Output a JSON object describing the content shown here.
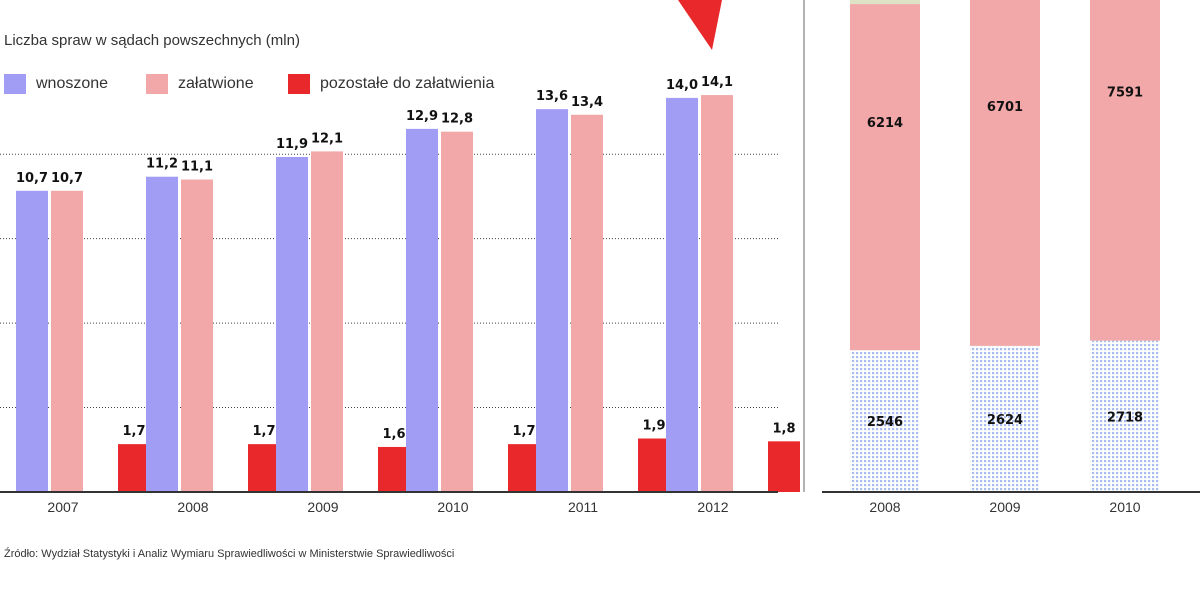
{
  "left_chart": {
    "title": "Liczba spraw w sądach powszechnych (mln)",
    "legend": [
      {
        "label": "wnoszone",
        "color": "#a19cf4"
      },
      {
        "label": "załatwione",
        "color": "#f2a8a8"
      },
      {
        "label": "pozostałe do załatwienia",
        "color": "#e8282a"
      }
    ]
  },
  "source": "Źródło: Wydział Statystyki i Analiz Wymiaru Sprawiedliwości w Ministerstwie Sprawiedliwości",
  "chart_data": [
    {
      "type": "bar",
      "title": "Liczba spraw w sądach powszechnych (mln)",
      "categories": [
        "2007",
        "2008",
        "2009",
        "2010",
        "2011",
        "2012"
      ],
      "ylim": [
        0,
        17.5
      ],
      "grid": true,
      "legend_position": "top-left",
      "series": [
        {
          "name": "wnoszone",
          "color": "#a19cf4",
          "values": [
            10.7,
            11.2,
            11.9,
            12.9,
            13.6,
            14.0
          ],
          "labels": [
            "10,7",
            "11,2",
            "11,9",
            "12,9",
            "13,6",
            "14,0"
          ]
        },
        {
          "name": "załatwione",
          "color": "#f2a8a8",
          "values": [
            10.7,
            11.1,
            12.1,
            12.8,
            13.4,
            14.1
          ],
          "labels": [
            "10,7",
            "11,1",
            "12,1",
            "12,8",
            "13,4",
            "14,1"
          ]
        },
        {
          "name": "pozostałe do załatwienia",
          "color": "#e8282a",
          "values": [
            1.7,
            1.7,
            1.6,
            1.7,
            1.9,
            1.8
          ],
          "labels": [
            "1,7",
            "1,7",
            "1,6",
            "1,7",
            "1,9",
            "1,8"
          ]
        }
      ]
    },
    {
      "type": "bar",
      "stacked": true,
      "categories": [
        "2008",
        "2009",
        "2010"
      ],
      "series": [
        {
          "values": [
            2546,
            2624,
            2718
          ],
          "color": "#c9d4f5"
        },
        {
          "values": [
            6214,
            6701,
            7591
          ],
          "color": "#f2a8a8"
        }
      ]
    }
  ]
}
